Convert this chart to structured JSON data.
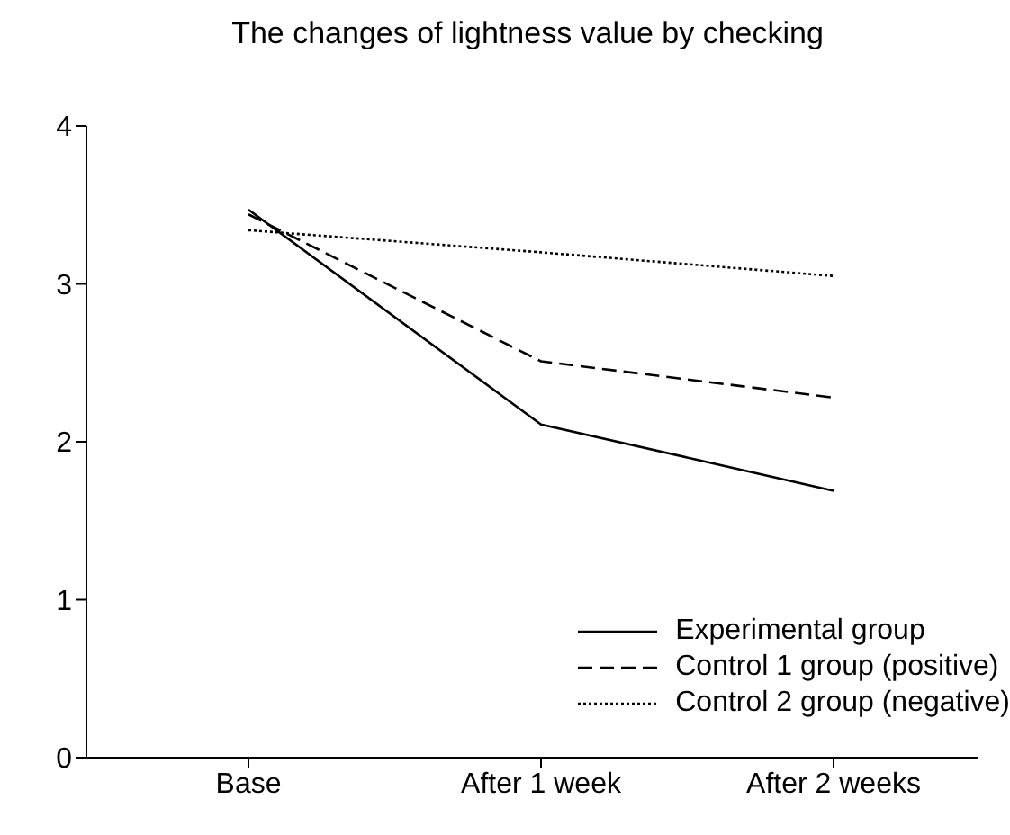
{
  "chart_data": {
    "type": "line",
    "title": "The changes of lightness value by checking",
    "categories": [
      "Base",
      "After 1 week",
      "After 2 weeks"
    ],
    "series": [
      {
        "name": "Experimental group",
        "color": "#000000",
        "line_style": "solid",
        "values": [
          3.47,
          2.11,
          1.69
        ]
      },
      {
        "name": "Control 1 group (positive)",
        "color": "#000000",
        "line_style": "dashed",
        "values": [
          3.44,
          2.51,
          2.28
        ]
      },
      {
        "name": "Control 2 group (negative)",
        "color": "#000000",
        "line_style": "dotted",
        "values": [
          3.34,
          3.2,
          3.05
        ]
      }
    ],
    "ylim": [
      0,
      4
    ],
    "yticks": [
      0,
      1,
      2,
      3,
      4
    ],
    "grid": false,
    "legend": "bottom right",
    "marker": "none"
  }
}
